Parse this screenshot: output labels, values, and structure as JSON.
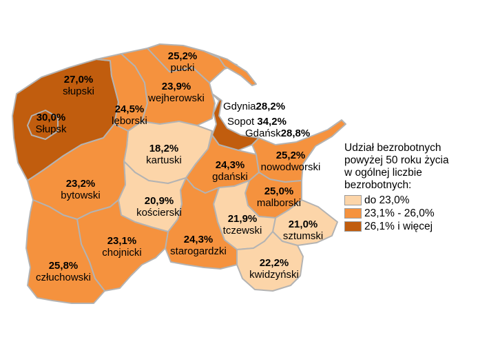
{
  "legend": {
    "title_lines": [
      "Udział bezrobotnych",
      "powyżej 50 roku życia",
      "w ogólnej liczbie",
      "bezrobotnych:"
    ],
    "classes": [
      {
        "label": "do 23,0%",
        "color": "#fcd5a9"
      },
      {
        "label": "23,1% - 26,0%",
        "color": "#f5923e"
      },
      {
        "label": "26,1% i więcej",
        "color": "#c15d0e"
      }
    ]
  },
  "regions": [
    {
      "name": "słupski",
      "value": "27,0%",
      "class": 2
    },
    {
      "name": "Słupsk",
      "value": "30,0%",
      "class": 2
    },
    {
      "name": "pucki",
      "value": "25,2%",
      "class": 1
    },
    {
      "name": "wejherowski",
      "value": "23,9%",
      "class": 1
    },
    {
      "name": "lęborski",
      "value": "24,5%",
      "class": 1
    },
    {
      "name": "kartuski",
      "value": "18,2%",
      "class": 0
    },
    {
      "name": "nowodworski",
      "value": "25,2%",
      "class": 1
    },
    {
      "name": "gdański",
      "value": "24,3%",
      "class": 1
    },
    {
      "name": "bytowski",
      "value": "23,2%",
      "class": 1
    },
    {
      "name": "kościerski",
      "value": "20,9%",
      "class": 0
    },
    {
      "name": "malborski",
      "value": "25,0%",
      "class": 1
    },
    {
      "name": "chojnicki",
      "value": "23,1%",
      "class": 1
    },
    {
      "name": "starogardzki",
      "value": "24,3%",
      "class": 1
    },
    {
      "name": "tczewski",
      "value": "21,9%",
      "class": 0
    },
    {
      "name": "sztumski",
      "value": "21,0%",
      "class": 0
    },
    {
      "name": "człuchowski",
      "value": "25,8%",
      "class": 1
    },
    {
      "name": "kwidzyński",
      "value": "22,2%",
      "class": 0
    }
  ],
  "cities": [
    {
      "name": "Gdynia",
      "value": "28,2%",
      "class": 2
    },
    {
      "name": "Sopot",
      "value": "34,2%",
      "class": 2
    },
    {
      "name": "Gdańsk",
      "value": "28,8%",
      "class": 2
    }
  ]
}
